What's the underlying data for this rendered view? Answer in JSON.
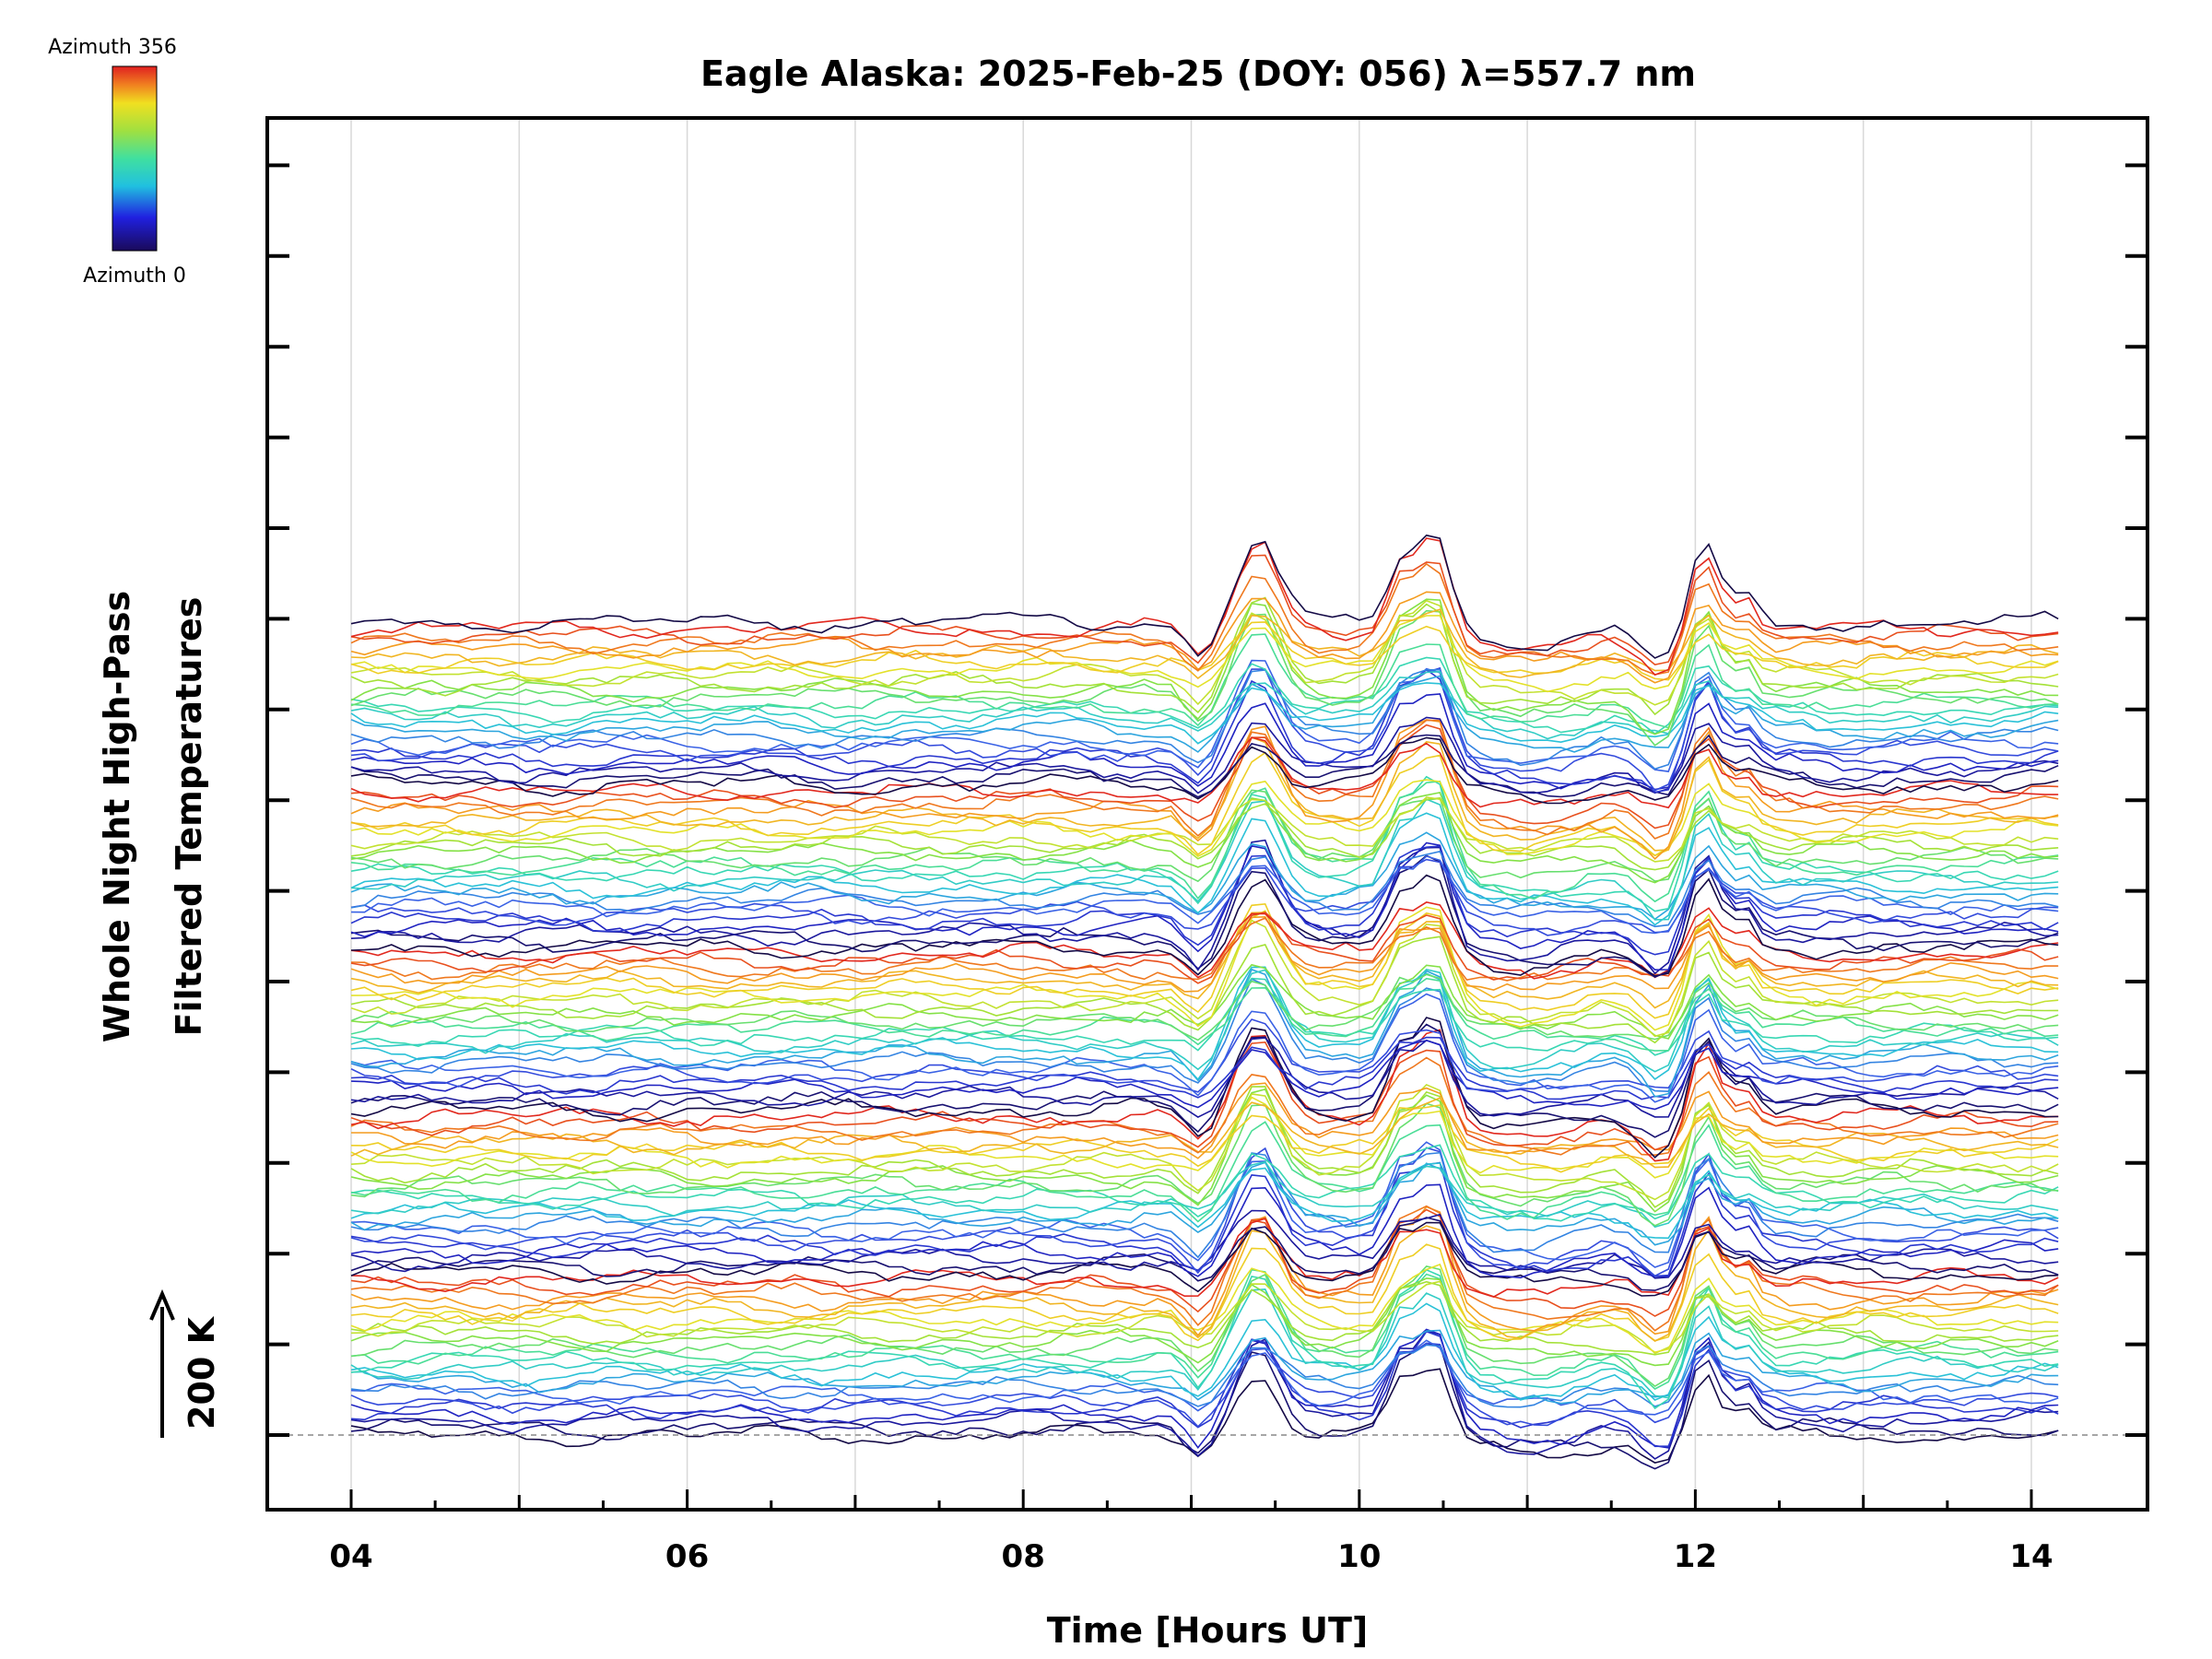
{
  "chart_data": {
    "type": "line",
    "title": "Eagle Alaska: 2025-Feb-25 (DOY: 056) λ=557.7 nm",
    "xlabel": "Time [Hours UT]",
    "ylabel_line1": "Whole Night High-Pass",
    "ylabel_line2": "Filtered Temperatures",
    "scale_label": "200 K",
    "x_range": [
      4.0,
      14.2
    ],
    "x_ticks": [
      "04",
      "06",
      "08",
      "10",
      "12",
      "14"
    ],
    "x_tick_values": [
      4,
      6,
      8,
      10,
      12,
      14
    ],
    "y_axis_labels": "none",
    "y_ticks_count": 15,
    "baseline_dashed": true,
    "grid": "vertical light gray lines at each hour",
    "colorbar": {
      "label_top": "Azimuth 356",
      "label_bottom": "Azimuth 0",
      "colormap": "rainbow (dark blue to red)"
    },
    "series_description": "Stacked waterfall of 121 high-pass filtered temperature time series colored by azimuth",
    "num_series": 121,
    "series_count_per_cycle": 24,
    "peak_times_hours": [
      9.4,
      10.25,
      10.45,
      12.05,
      12.3
    ],
    "peak_amplitudes_relative": [
      1.0,
      0.9,
      1.1,
      1.0,
      0.6
    ],
    "dip_times_hours": [
      9.05,
      11.8
    ]
  }
}
